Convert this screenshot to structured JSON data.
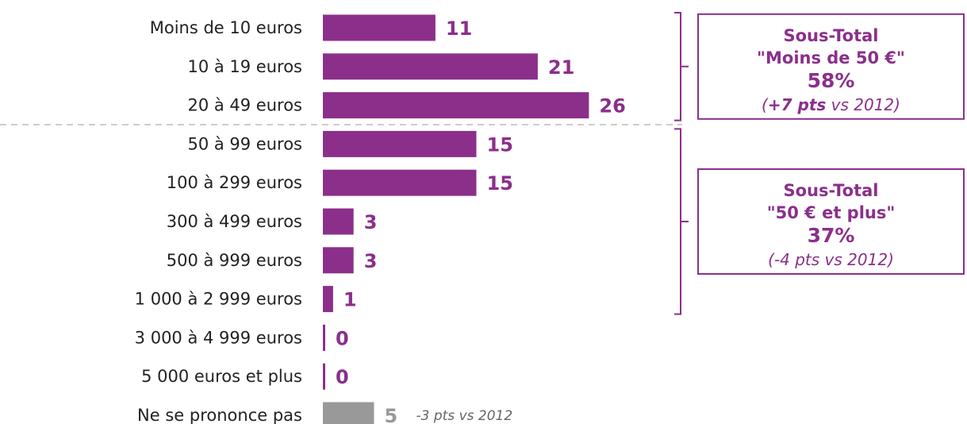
{
  "chart_data": {
    "type": "bar",
    "orientation": "horizontal",
    "categories": [
      "Moins de 10 euros",
      "10 à 19 euros",
      "20 à 49 euros",
      "50 à 99 euros",
      "100 à 299 euros",
      "300 à 499 euros",
      "500 à 999 euros",
      "1 000 à 2 999 euros",
      "3 000 à 4 999 euros",
      "5 000 euros et plus",
      "Ne se prononce pas"
    ],
    "values": [
      11,
      21,
      26,
      15,
      15,
      3,
      3,
      1,
      0,
      0,
      5
    ],
    "value_labels": [
      "11",
      "21",
      "26",
      "15",
      "15",
      "3",
      "3",
      "1",
      "0",
      "0",
      "5"
    ],
    "bar_colors": [
      "#8b2f8b",
      "#8b2f8b",
      "#8b2f8b",
      "#8b2f8b",
      "#8b2f8b",
      "#8b2f8b",
      "#8b2f8b",
      "#8b2f8b",
      "#8b2f8b",
      "#8b2f8b",
      "#999999"
    ],
    "annotation": "-3 pts vs 2012",
    "groups": [
      {
        "title": "Sous-Total",
        "subtitle": "\"Moins de 50 €\"",
        "percent": "58%",
        "change_open": "(",
        "change_strong": "+7 pts",
        "change_rest": " vs 2012)",
        "categories": [
          "Moins de 10 euros",
          "10 à 19 euros",
          "20 à 49 euros"
        ]
      },
      {
        "title": "Sous-Total",
        "subtitle": "\"50 € et plus\"",
        "percent": "37%",
        "change_open": "(",
        "change_strong": "",
        "change_rest": "-4 pts vs 2012)",
        "categories": [
          "50 à 99 euros",
          "100 à 299 euros",
          "300 à 499 euros",
          "500 à 999 euros",
          "1 000 à 2 999 euros"
        ]
      }
    ],
    "colors": {
      "accent": "#8b2f8b",
      "neutral": "#999999",
      "divider": "#cccccc"
    },
    "xlabel": "",
    "ylabel": "",
    "grid": false,
    "legend": "none"
  }
}
